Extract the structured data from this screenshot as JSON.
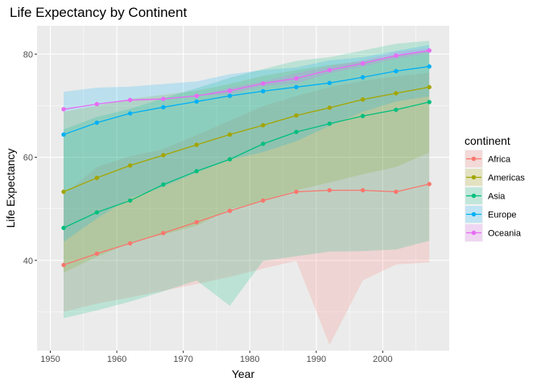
{
  "chart_data": {
    "type": "line",
    "title": "Life Expectancy by Continent",
    "xlabel": "Year",
    "ylabel": "Life Expectancy",
    "xlim": [
      1948,
      2010
    ],
    "ylim": [
      22.5,
      85.5
    ],
    "x_ticks": [
      1950,
      1960,
      1970,
      1980,
      1990,
      2000
    ],
    "x_tick_labels": [
      "1950",
      "1960",
      "1970",
      "1980",
      "1990",
      "2000"
    ],
    "y_ticks": [
      40,
      60,
      80
    ],
    "y_tick_labels": [
      "40",
      "60",
      "80"
    ],
    "x": [
      1952,
      1957,
      1962,
      1967,
      1972,
      1977,
      1982,
      1987,
      1992,
      1997,
      2002,
      2007
    ],
    "legend_title": "continent",
    "legend_position": "right",
    "series": [
      {
        "name": "Africa",
        "color": "#F8766D",
        "values": [
          39.1,
          41.3,
          43.3,
          45.3,
          47.4,
          49.6,
          51.6,
          53.3,
          53.6,
          53.6,
          53.3,
          54.8
        ],
        "min": [
          30.0,
          31.6,
          32.8,
          34.1,
          35.4,
          36.8,
          38.4,
          39.9,
          23.6,
          36.1,
          39.2,
          39.6
        ],
        "max": [
          52.7,
          58.1,
          60.2,
          61.6,
          64.3,
          67.1,
          69.9,
          71.9,
          73.6,
          74.8,
          75.7,
          76.4
        ]
      },
      {
        "name": "Americas",
        "color": "#A3A500",
        "values": [
          53.3,
          56.0,
          58.4,
          60.4,
          62.4,
          64.4,
          66.2,
          68.1,
          69.6,
          71.2,
          72.4,
          73.6
        ],
        "min": [
          37.6,
          40.7,
          43.4,
          45.0,
          46.7,
          49.9,
          51.5,
          53.6,
          55.1,
          56.7,
          58.1,
          60.9
        ],
        "max": [
          68.8,
          70.0,
          71.3,
          72.1,
          72.9,
          74.2,
          75.8,
          76.9,
          77.9,
          78.6,
          79.8,
          80.7
        ]
      },
      {
        "name": "Asia",
        "color": "#00BF7D",
        "values": [
          46.3,
          49.3,
          51.6,
          54.7,
          57.3,
          59.6,
          62.6,
          64.9,
          66.5,
          68.0,
          69.2,
          70.7
        ],
        "min": [
          28.8,
          30.3,
          32.0,
          34.0,
          36.1,
          31.2,
          39.9,
          40.8,
          41.7,
          41.8,
          42.1,
          43.8
        ],
        "max": [
          65.4,
          67.8,
          69.4,
          71.4,
          73.4,
          75.4,
          77.1,
          78.7,
          79.4,
          80.7,
          82.0,
          82.6
        ]
      },
      {
        "name": "Europe",
        "color": "#00B0F6",
        "values": [
          64.4,
          66.7,
          68.5,
          69.7,
          70.8,
          71.9,
          72.8,
          73.6,
          74.4,
          75.5,
          76.7,
          77.6
        ],
        "min": [
          43.6,
          48.1,
          52.1,
          54.3,
          57.0,
          59.5,
          61.0,
          63.1,
          66.1,
          68.8,
          70.8,
          71.8
        ],
        "max": [
          72.7,
          73.5,
          73.7,
          74.2,
          74.7,
          76.1,
          76.9,
          77.4,
          78.8,
          79.4,
          80.6,
          81.8
        ]
      },
      {
        "name": "Oceania",
        "color": "#E76BF3",
        "values": [
          69.3,
          70.3,
          71.1,
          71.3,
          71.9,
          72.9,
          74.3,
          75.3,
          76.9,
          78.2,
          79.7,
          80.7
        ],
        "min": [
          69.1,
          70.3,
          70.9,
          71.1,
          71.9,
          72.2,
          73.8,
          74.3,
          76.3,
          77.6,
          79.1,
          80.2
        ],
        "max": [
          69.4,
          70.3,
          71.2,
          71.5,
          71.9,
          73.5,
          74.7,
          76.3,
          77.6,
          78.8,
          80.4,
          81.2
        ]
      }
    ]
  }
}
